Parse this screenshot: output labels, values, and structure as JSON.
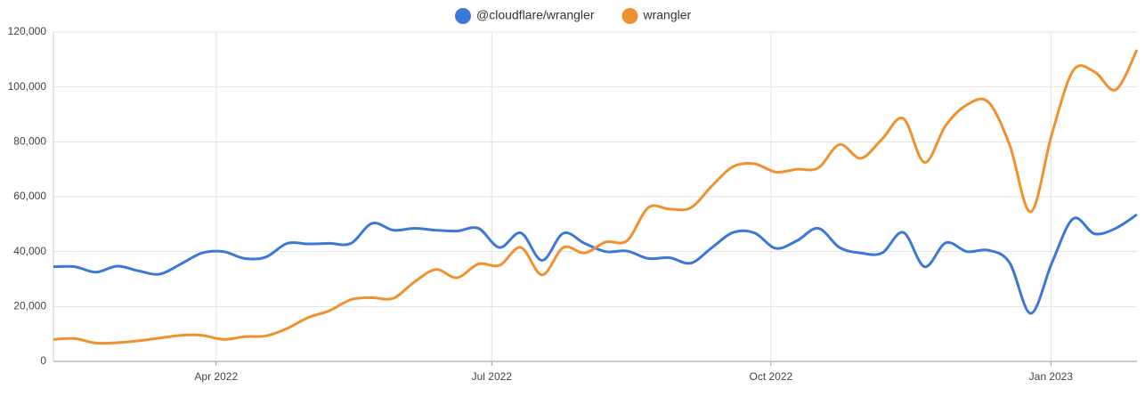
{
  "chart_data": {
    "type": "line",
    "x": [
      0,
      1,
      2,
      3,
      4,
      5,
      6,
      7,
      8,
      9,
      10,
      11,
      12,
      13,
      14,
      15,
      16,
      17,
      18,
      19,
      20,
      21,
      22,
      23,
      24,
      25,
      26,
      27,
      28,
      29,
      30,
      31,
      32,
      33,
      34,
      35,
      36,
      37,
      38,
      39,
      40,
      41,
      42,
      43,
      44,
      45,
      46,
      47,
      48,
      49,
      50,
      51
    ],
    "xlim": [
      0,
      51
    ],
    "xticks": [
      {
        "value": 7.66,
        "label": "Apr 2022"
      },
      {
        "value": 20.63,
        "label": "Jul 2022"
      },
      {
        "value": 33.77,
        "label": "Oct 2022"
      },
      {
        "value": 46.95,
        "label": "Jan 2023"
      }
    ],
    "ylim": [
      0,
      120000
    ],
    "yticks": [
      0,
      {
        "value": 20000,
        "label": "20,000"
      },
      {
        "value": 40000,
        "label": "40,000"
      },
      {
        "value": 60000,
        "label": "60,000"
      },
      {
        "value": 80000,
        "label": "80,000"
      },
      {
        "value": 100000,
        "label": "100,000"
      },
      {
        "value": 120000,
        "label": "120,000"
      }
    ],
    "grid": true,
    "legend": "top",
    "series": [
      {
        "name": "@cloudflare/wrangler",
        "color": "#3b78d8",
        "values": [
          34500,
          34500,
          32500,
          34700,
          33000,
          31800,
          35500,
          39500,
          40000,
          37500,
          38000,
          43000,
          42800,
          43000,
          43000,
          50300,
          47800,
          48500,
          47800,
          47500,
          48500,
          41500,
          46800,
          36800,
          46700,
          43000,
          40000,
          40200,
          37500,
          37800,
          35800,
          41500,
          47000,
          46800,
          41200,
          44000,
          48500,
          41500,
          39500,
          39500,
          47000,
          34500,
          43200,
          40000,
          40500,
          36000,
          17500,
          36000,
          52000,
          46500,
          48500,
          53500
        ]
      },
      {
        "name": "wrangler",
        "color": "#f0912f",
        "values": [
          8000,
          8300,
          6700,
          6800,
          7500,
          8500,
          9500,
          9500,
          8000,
          9000,
          9300,
          12000,
          16000,
          18500,
          22500,
          23200,
          23000,
          29000,
          33500,
          30500,
          35500,
          35000,
          41500,
          31500,
          41500,
          39500,
          43500,
          44000,
          56000,
          55500,
          56000,
          64000,
          71000,
          72000,
          69000,
          70000,
          70500,
          79000,
          74000,
          81000,
          88500,
          72500,
          86000,
          93500,
          94500,
          79000,
          54500,
          83000,
          106000,
          105500,
          99000,
          113500
        ]
      }
    ]
  }
}
